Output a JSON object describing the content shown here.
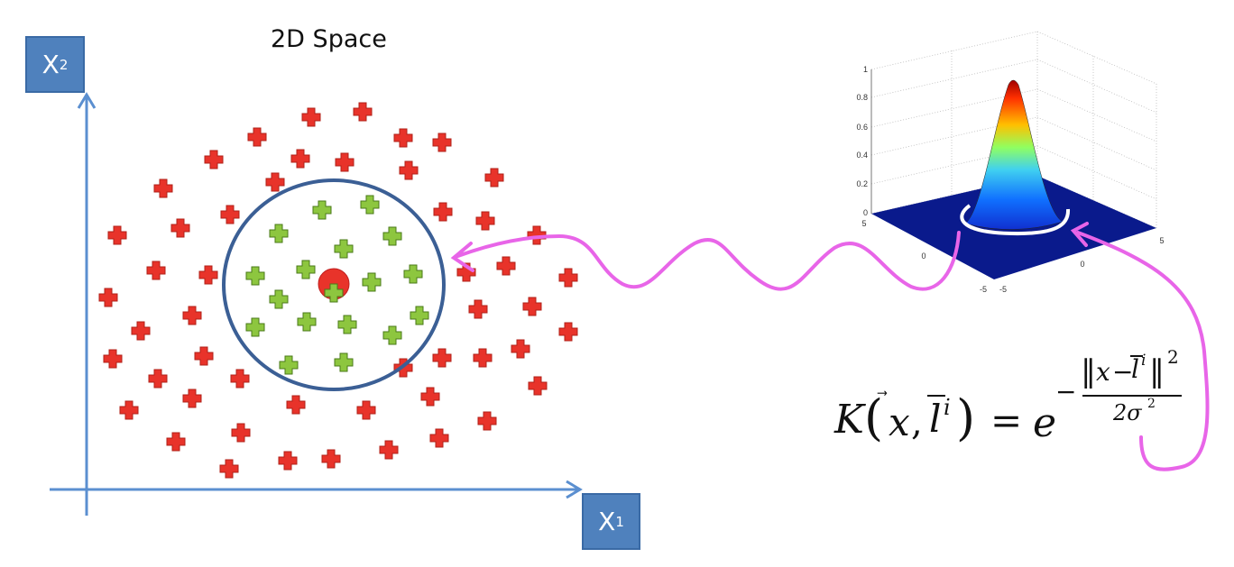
{
  "title": "2D Space",
  "axes": {
    "x2": {
      "letter": "X",
      "sub": "2"
    },
    "x1": {
      "letter": "X",
      "sub": "1"
    },
    "color": "#5b8fd0"
  },
  "plot3d": {
    "z_ticks": [
      "1",
      "0.8",
      "0.6",
      "0.4",
      "0.2",
      "0"
    ],
    "x_ticks": [
      "5",
      "0",
      "-5"
    ],
    "y_ticks": [
      "-5",
      "0",
      "5"
    ],
    "colormap": [
      "#7f0000",
      "#ff4000",
      "#ffd000",
      "#80ff80",
      "#30c0ff",
      "#0040ff",
      "#000080"
    ]
  },
  "formula": {
    "lhs_func": "K",
    "lhs_open": "(",
    "lhs_x": "x",
    "lhs_comma": ",",
    "lhs_l": "l",
    "lhs_i": "i",
    "lhs_close": ")",
    "equals": "=",
    "base": "e",
    "minus": "−",
    "num_x": "x",
    "num_minus": "−",
    "num_l": "l",
    "num_i": "i",
    "num_norm_left": "‖",
    "num_norm_right": "‖",
    "num_power": "2",
    "den": "2σ",
    "den_power": "2"
  },
  "colors": {
    "red_class": "#e8332a",
    "green_class": "#8dc63f",
    "circle": "#3b5f95",
    "arrow": "#e865e8"
  }
}
